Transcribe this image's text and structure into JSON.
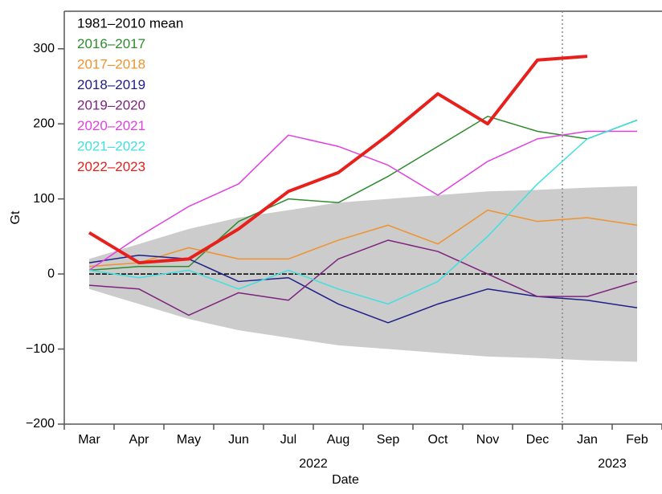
{
  "chart_data": {
    "type": "line",
    "x_label": "Date",
    "y_label": "Gt",
    "categories": [
      "Mar",
      "Apr",
      "May",
      "Jun",
      "Jul",
      "Aug",
      "Sep",
      "Oct",
      "Nov",
      "Dec",
      "Jan",
      "Feb"
    ],
    "x_groups": [
      {
        "label": "2022",
        "span": 10
      },
      {
        "label": "2023",
        "span": 2
      }
    ],
    "ylim": [
      -200,
      350
    ],
    "yticks": [
      {
        "value": -200,
        "label": "−200"
      },
      {
        "value": -100,
        "label": "−100"
      },
      0,
      100,
      200,
      300
    ],
    "band": {
      "color": "#cccccc",
      "upper": [
        20,
        40,
        60,
        75,
        85,
        95,
        100,
        105,
        110,
        112,
        115,
        117
      ],
      "lower": [
        -20,
        -40,
        -60,
        -75,
        -85,
        -95,
        -100,
        -105,
        -110,
        -112,
        -115,
        -117
      ]
    },
    "series": [
      {
        "name": "1981–2010 mean",
        "color": "#000000",
        "values": [
          0,
          0,
          0,
          0,
          0,
          0,
          0,
          0,
          0,
          0,
          0,
          0
        ]
      },
      {
        "name": "2016–2017",
        "color": "#2e8b2e",
        "values": [
          5,
          10,
          10,
          70,
          100,
          95,
          130,
          170,
          210,
          190,
          180,
          205
        ]
      },
      {
        "name": "2017–2018",
        "color": "#f0922c",
        "values": [
          10,
          15,
          35,
          20,
          20,
          45,
          65,
          40,
          85,
          70,
          75,
          65
        ]
      },
      {
        "name": "2018–2019",
        "color": "#1f1f8a",
        "values": [
          15,
          25,
          20,
          -10,
          -5,
          -40,
          -65,
          -40,
          -20,
          -30,
          -35,
          -45
        ]
      },
      {
        "name": "2019–2020",
        "color": "#7d237d",
        "values": [
          -15,
          -20,
          -55,
          -25,
          -35,
          20,
          45,
          30,
          0,
          -30,
          -30,
          -10
        ]
      },
      {
        "name": "2020–2021",
        "color": "#e040e0",
        "values": [
          5,
          50,
          90,
          120,
          185,
          170,
          145,
          105,
          150,
          180,
          190,
          190
        ]
      },
      {
        "name": "2021–2022",
        "color": "#40e0e0",
        "values": [
          5,
          -5,
          5,
          -20,
          5,
          -20,
          -40,
          -10,
          50,
          120,
          180,
          205
        ]
      },
      {
        "name": "2022–2023",
        "color": "#e8201c",
        "values": [
          55,
          15,
          20,
          60,
          110,
          135,
          185,
          240,
          200,
          285,
          290,
          null
        ]
      }
    ]
  }
}
